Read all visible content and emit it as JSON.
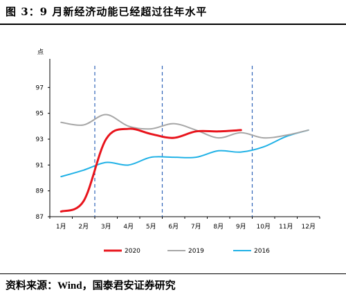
{
  "figure": {
    "title": "图 3：9 月新经济动能已经超过往年水平",
    "source_prefix": "资料来源：",
    "source_mid": "Wind",
    "source_suffix": "，国泰君安证券研究"
  },
  "chart_data": {
    "type": "line",
    "categories": [
      "1月",
      "2月",
      "3月",
      "4月",
      "5月",
      "6月",
      "7月",
      "8月",
      "9月",
      "10月",
      "11月",
      "12月"
    ],
    "series": [
      {
        "name": "2020",
        "color": "#e8141c",
        "values": [
          87.4,
          88.2,
          93.0,
          93.8,
          93.4,
          93.1,
          93.6,
          93.6,
          93.7,
          null,
          null,
          null
        ]
      },
      {
        "name": "2019",
        "color": "#a6a6a6",
        "values": [
          94.3,
          94.1,
          94.9,
          94.0,
          93.8,
          94.2,
          93.7,
          93.1,
          93.5,
          93.1,
          93.3,
          93.7
        ]
      },
      {
        "name": "2016",
        "color": "#1fb1e6",
        "values": [
          90.1,
          90.6,
          91.2,
          91.0,
          91.6,
          91.6,
          91.6,
          92.1,
          92.0,
          92.4,
          93.2,
          93.7
        ]
      }
    ],
    "ylim": [
      87,
      99
    ],
    "yticks": [
      87,
      89,
      91,
      93,
      95,
      97
    ],
    "ylabel": "点",
    "xlabel": "",
    "vlines": [
      2,
      5,
      9
    ],
    "grid": false,
    "legend": "bottom"
  }
}
